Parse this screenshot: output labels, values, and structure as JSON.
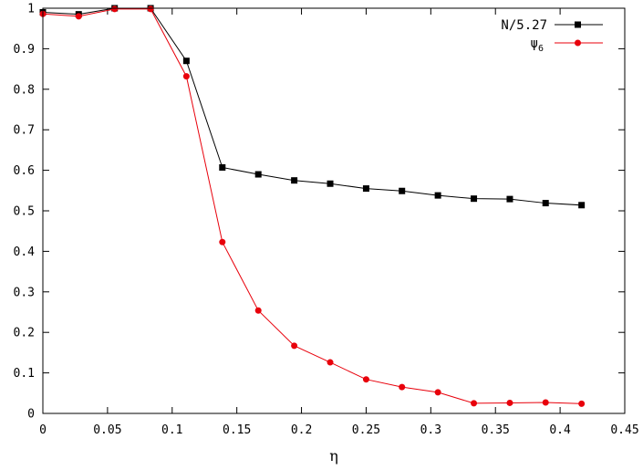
{
  "chart_data": {
    "type": "line",
    "xlabel": "η",
    "ylabel": "",
    "xlim": [
      0,
      0.45
    ],
    "ylim": [
      0,
      1
    ],
    "xticks": [
      "0",
      "0.05",
      "0.1",
      "0.15",
      "0.2",
      "0.25",
      "0.3",
      "0.35",
      "0.4",
      "0.45"
    ],
    "yticks": [
      "0",
      "0.1",
      "0.2",
      "0.3",
      "0.4",
      "0.5",
      "0.6",
      "0.7",
      "0.8",
      "0.9",
      "1"
    ],
    "legend_position": "top-right",
    "x": [
      0,
      0.0277,
      0.0555,
      0.0833,
      0.111,
      0.1388,
      0.1666,
      0.1944,
      0.2222,
      0.25,
      0.2777,
      0.3055,
      0.3333,
      0.3611,
      0.3888,
      0.4166
    ],
    "series": [
      {
        "name": "N/5.27",
        "marker": "square",
        "color": "#000000",
        "values": [
          0.99,
          0.985,
          1.0,
          1.0,
          0.87,
          0.607,
          0.59,
          0.575,
          0.567,
          0.555,
          0.549,
          0.538,
          0.53,
          0.529,
          0.519,
          0.514
        ]
      },
      {
        "name": "ψ",
        "name_sub": "6",
        "marker": "circle",
        "color": "#e8000b",
        "values": [
          0.986,
          0.98,
          0.998,
          0.998,
          0.832,
          0.423,
          0.254,
          0.167,
          0.126,
          0.084,
          0.065,
          0.052,
          0.025,
          0.026,
          0.027,
          0.024
        ]
      }
    ]
  }
}
